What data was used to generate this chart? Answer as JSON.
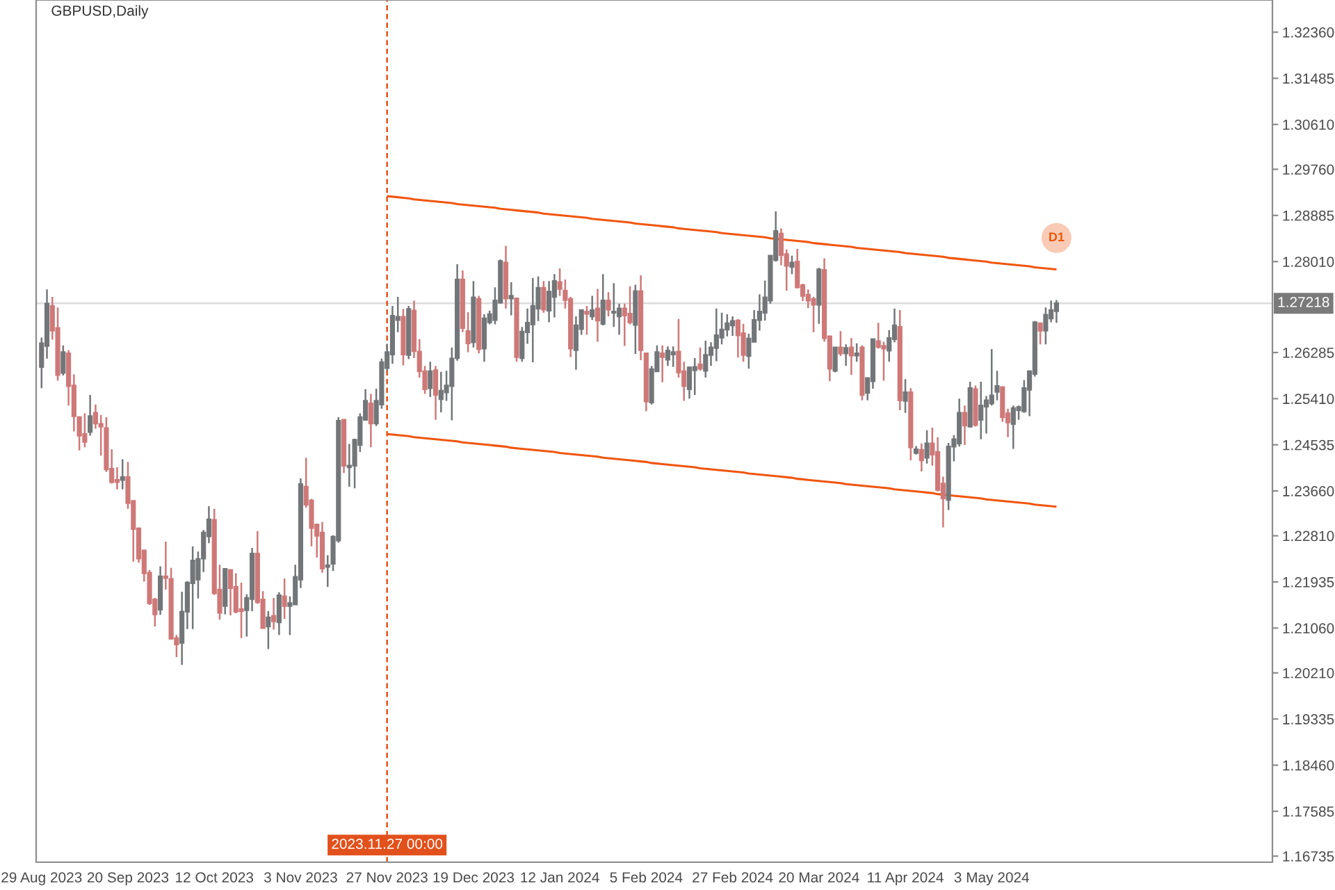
{
  "chart_data": {
    "type": "candlestick",
    "title": "GBPUSD,Daily",
    "categories": [
      "29 Aug 2023",
      null,
      null,
      null,
      null,
      null,
      null,
      null,
      null,
      null,
      null,
      null,
      null,
      null,
      null,
      null,
      "20 Sep 2023",
      null,
      null,
      null,
      null,
      null,
      null,
      null,
      null,
      null,
      null,
      null,
      null,
      null,
      null,
      null,
      "12 Oct 2023",
      null,
      null,
      null,
      null,
      null,
      null,
      null,
      null,
      null,
      null,
      null,
      null,
      null,
      null,
      null,
      "3 Nov 2023",
      null,
      null,
      null,
      null,
      null,
      null,
      null,
      null,
      null,
      null,
      null,
      null,
      null,
      null,
      null,
      "27 Nov 2023",
      null,
      null,
      null,
      null,
      null,
      null,
      null,
      null,
      null,
      null,
      null,
      null,
      null,
      null,
      null,
      "19 Dec 2023",
      null,
      null,
      null,
      null,
      null,
      null,
      null,
      null,
      null,
      null,
      null,
      null,
      null,
      null,
      null,
      "12 Jan 2024",
      null,
      null,
      null,
      null,
      null,
      null,
      null,
      null,
      null,
      null,
      null,
      null,
      null,
      null,
      null,
      "5 Feb 2024",
      null,
      null,
      null,
      null,
      null,
      null,
      null,
      null,
      null,
      null,
      null,
      null,
      null,
      null,
      null,
      "27 Feb 2024",
      null,
      null,
      null,
      null,
      null,
      null,
      null,
      null,
      null,
      null,
      null,
      null,
      null,
      null,
      null,
      "20 Mar 2024",
      null,
      null,
      null,
      null,
      null,
      null,
      null,
      null,
      null,
      null,
      null,
      null,
      null,
      null,
      null,
      "11 Apr 2024",
      null,
      null,
      null,
      null,
      null,
      null,
      null,
      null,
      null,
      null,
      null,
      null,
      null,
      null,
      null,
      "3 May 2024",
      null,
      null,
      null,
      null,
      null,
      null,
      null,
      null,
      null,
      null,
      null,
      null
    ],
    "ohlc": [
      [
        1.2601,
        1.2657,
        1.2561,
        1.2646
      ],
      [
        1.2641,
        1.2748,
        1.2617,
        1.2721
      ],
      [
        1.2717,
        1.2734,
        1.2653,
        1.267
      ],
      [
        1.2675,
        1.2714,
        1.2575,
        1.2586
      ],
      [
        1.259,
        1.2642,
        1.2585,
        1.2629
      ],
      [
        1.2627,
        1.2633,
        1.2528,
        1.2565
      ],
      [
        1.2566,
        1.2587,
        1.2479,
        1.2508
      ],
      [
        1.2506,
        1.2508,
        1.2443,
        1.2471
      ],
      [
        1.2474,
        1.2513,
        1.2449,
        1.2459
      ],
      [
        1.2478,
        1.2548,
        1.2471,
        1.2508
      ],
      [
        1.2514,
        1.253,
        1.2484,
        1.2494
      ],
      [
        1.2493,
        1.251,
        1.2433,
        1.2488
      ],
      [
        1.2485,
        1.2506,
        1.2402,
        1.2407
      ],
      [
        1.2408,
        1.2445,
        1.238,
        1.2383
      ],
      [
        1.2387,
        1.2411,
        1.2369,
        1.2383
      ],
      [
        1.2387,
        1.2426,
        1.2369,
        1.2392
      ],
      [
        1.2392,
        1.2421,
        1.2332,
        1.2343
      ],
      [
        1.2347,
        1.2348,
        1.2232,
        1.2294
      ],
      [
        1.2295,
        1.2297,
        1.223,
        1.2238
      ],
      [
        1.2253,
        1.2255,
        1.2194,
        1.221
      ],
      [
        1.2211,
        1.2216,
        1.215,
        1.2153
      ],
      [
        1.216,
        1.2163,
        1.2109,
        1.2132
      ],
      [
        1.2141,
        1.2223,
        1.2131,
        1.2204
      ],
      [
        1.2204,
        1.227,
        1.2179,
        1.2201
      ],
      [
        1.2199,
        1.222,
        1.2084,
        1.2086
      ],
      [
        1.2087,
        1.2093,
        1.2051,
        1.2075
      ],
      [
        1.2078,
        1.2175,
        1.2036,
        1.2137
      ],
      [
        1.2137,
        1.2195,
        1.2104,
        1.2192
      ],
      [
        1.2191,
        1.2261,
        1.2104,
        1.2234
      ],
      [
        1.2198,
        1.2251,
        1.2162,
        1.2237
      ],
      [
        1.2238,
        1.2292,
        1.2212,
        1.2287
      ],
      [
        1.228,
        1.2337,
        1.2267,
        1.2312
      ],
      [
        1.2311,
        1.2332,
        1.2169,
        1.2172
      ],
      [
        1.2179,
        1.2226,
        1.2122,
        1.2135
      ],
      [
        1.2148,
        1.2218,
        1.2132,
        1.2218
      ],
      [
        1.2216,
        1.2216,
        1.213,
        1.2182
      ],
      [
        1.2184,
        1.221,
        1.2134,
        1.2137
      ],
      [
        1.2142,
        1.2192,
        1.2087,
        1.2138
      ],
      [
        1.214,
        1.217,
        1.209,
        1.2163
      ],
      [
        1.2161,
        1.2258,
        1.2138,
        1.2247
      ],
      [
        1.2247,
        1.229,
        1.2152,
        1.2155
      ],
      [
        1.216,
        1.2176,
        1.2105,
        1.2106
      ],
      [
        1.2109,
        1.2138,
        1.2066,
        1.2126
      ],
      [
        1.2129,
        1.2163,
        1.2103,
        1.2119
      ],
      [
        1.2117,
        1.2174,
        1.2093,
        1.2168
      ],
      [
        1.2166,
        1.22,
        1.2123,
        1.2148
      ],
      [
        1.2148,
        1.2166,
        1.2093,
        1.2153
      ],
      [
        1.2151,
        1.2226,
        1.2151,
        1.2203
      ],
      [
        1.2198,
        1.239,
        1.2182,
        1.2379
      ],
      [
        1.2374,
        1.2429,
        1.2334,
        1.234
      ],
      [
        1.2348,
        1.2351,
        1.2261,
        1.2296
      ],
      [
        1.2302,
        1.2304,
        1.224,
        1.2281
      ],
      [
        1.2287,
        1.2307,
        1.2211,
        1.2219
      ],
      [
        1.2222,
        1.2244,
        1.2184,
        1.2225
      ],
      [
        1.2228,
        1.2282,
        1.2214,
        1.2279
      ],
      [
        1.2272,
        1.2506,
        1.2268,
        1.2499
      ],
      [
        1.2501,
        1.2501,
        1.24,
        1.2414
      ],
      [
        1.2411,
        1.2455,
        1.2374,
        1.2414
      ],
      [
        1.2414,
        1.2465,
        1.2371,
        1.2463
      ],
      [
        1.2453,
        1.2513,
        1.244,
        1.2506
      ],
      [
        1.2501,
        1.2559,
        1.25,
        1.2537
      ],
      [
        1.2532,
        1.255,
        1.2449,
        1.2494
      ],
      [
        1.2494,
        1.256,
        1.2489,
        1.2537
      ],
      [
        1.253,
        1.2617,
        1.2522,
        1.261
      ],
      [
        1.2599,
        1.2645,
        1.2594,
        1.2629
      ],
      [
        1.2625,
        1.2717,
        1.2607,
        1.2698
      ],
      [
        1.269,
        1.2734,
        1.2667,
        1.2696
      ],
      [
        1.2696,
        1.2711,
        1.2604,
        1.2625
      ],
      [
        1.2624,
        1.2717,
        1.2616,
        1.2711
      ],
      [
        1.2708,
        1.2727,
        1.2618,
        1.2631
      ],
      [
        1.263,
        1.2654,
        1.2581,
        1.2593
      ],
      [
        1.2593,
        1.2603,
        1.255,
        1.2559
      ],
      [
        1.2561,
        1.2611,
        1.2544,
        1.2593
      ],
      [
        1.2595,
        1.2603,
        1.2501,
        1.2548
      ],
      [
        1.254,
        1.2592,
        1.2515,
        1.2556
      ],
      [
        1.2553,
        1.2594,
        1.2537,
        1.2566
      ],
      [
        1.2565,
        1.2638,
        1.25,
        1.2617
      ],
      [
        1.2618,
        1.2796,
        1.2613,
        1.2767
      ],
      [
        1.2767,
        1.2784,
        1.2667,
        1.2675
      ],
      [
        1.2669,
        1.2705,
        1.2629,
        1.2646
      ],
      [
        1.2648,
        1.2764,
        1.2638,
        1.2733
      ],
      [
        1.273,
        1.2736,
        1.2627,
        1.2635
      ],
      [
        1.2636,
        1.2701,
        1.2611,
        1.2693
      ],
      [
        1.2686,
        1.2708,
        1.2682,
        1.2701
      ],
      [
        1.269,
        1.2752,
        1.2682,
        1.2727
      ],
      [
        1.2723,
        1.2805,
        1.2721,
        1.2802
      ],
      [
        1.2799,
        1.2831,
        1.2712,
        1.2731
      ],
      [
        1.2731,
        1.2762,
        1.2699,
        1.2736
      ],
      [
        1.2731,
        1.2731,
        1.2611,
        1.262
      ],
      [
        1.2618,
        1.2677,
        1.2611,
        1.2668
      ],
      [
        1.2667,
        1.2712,
        1.2645,
        1.2685
      ],
      [
        1.2682,
        1.277,
        1.261,
        1.2717
      ],
      [
        1.2712,
        1.2773,
        1.2688,
        1.2751
      ],
      [
        1.2751,
        1.2764,
        1.2704,
        1.271
      ],
      [
        1.2708,
        1.2764,
        1.2686,
        1.2744
      ],
      [
        1.2734,
        1.2777,
        1.2695,
        1.2764
      ],
      [
        1.2762,
        1.2788,
        1.2736,
        1.2749
      ],
      [
        1.2746,
        1.2767,
        1.2712,
        1.2728
      ],
      [
        1.273,
        1.2734,
        1.262,
        1.2636
      ],
      [
        1.2633,
        1.2697,
        1.2596,
        1.268
      ],
      [
        1.2673,
        1.2709,
        1.2662,
        1.2709
      ],
      [
        1.2706,
        1.2717,
        1.2662,
        1.2702
      ],
      [
        1.2697,
        1.2736,
        1.269,
        1.2709
      ],
      [
        1.2712,
        1.2749,
        1.2649,
        1.2689
      ],
      [
        1.2683,
        1.2777,
        1.268,
        1.2727
      ],
      [
        1.2727,
        1.2743,
        1.2697,
        1.271
      ],
      [
        1.2704,
        1.276,
        1.2677,
        1.2706
      ],
      [
        1.2697,
        1.2721,
        1.2662,
        1.2712
      ],
      [
        1.2712,
        1.2721,
        1.2641,
        1.2699
      ],
      [
        1.2702,
        1.2754,
        1.2682,
        1.2686
      ],
      [
        1.2681,
        1.2757,
        1.2626,
        1.2745
      ],
      [
        1.2745,
        1.2775,
        1.2614,
        1.2633
      ],
      [
        1.2627,
        1.2627,
        1.2517,
        1.2536
      ],
      [
        1.2534,
        1.2603,
        1.253,
        1.2597
      ],
      [
        1.2593,
        1.2642,
        1.2593,
        1.2629
      ],
      [
        1.2627,
        1.2642,
        1.2572,
        1.262
      ],
      [
        1.2615,
        1.264,
        1.2603,
        1.2632
      ],
      [
        1.2625,
        1.264,
        1.2601,
        1.2629
      ],
      [
        1.263,
        1.2692,
        1.2581,
        1.2591
      ],
      [
        1.2593,
        1.2611,
        1.2537,
        1.2565
      ],
      [
        1.2559,
        1.2602,
        1.2541,
        1.26
      ],
      [
        1.2595,
        1.2618,
        1.2548,
        1.2601
      ],
      [
        1.2606,
        1.2638,
        1.2594,
        1.2598
      ],
      [
        1.2594,
        1.2651,
        1.2581,
        1.2624
      ],
      [
        1.2624,
        1.2648,
        1.2603,
        1.2638
      ],
      [
        1.2637,
        1.2712,
        1.2612,
        1.2661
      ],
      [
        1.2657,
        1.2704,
        1.2644,
        1.2672
      ],
      [
        1.2672,
        1.2701,
        1.2659,
        1.2684
      ],
      [
        1.268,
        1.2697,
        1.266,
        1.2688
      ],
      [
        1.2689,
        1.2692,
        1.2619,
        1.2661
      ],
      [
        1.2665,
        1.2683,
        1.2611,
        1.2624
      ],
      [
        1.2622,
        1.2664,
        1.2598,
        1.2655
      ],
      [
        1.2649,
        1.2709,
        1.2649,
        1.269
      ],
      [
        1.269,
        1.2739,
        1.267,
        1.2706
      ],
      [
        1.2704,
        1.2765,
        1.2689,
        1.2733
      ],
      [
        1.2727,
        1.2812,
        1.2721,
        1.2812
      ],
      [
        1.2804,
        1.2896,
        1.2801,
        1.2859
      ],
      [
        1.2854,
        1.2864,
        1.2794,
        1.2813
      ],
      [
        1.2815,
        1.2824,
        1.2746,
        1.2793
      ],
      [
        1.2791,
        1.2812,
        1.2777,
        1.2799
      ],
      [
        1.2801,
        1.2825,
        1.275,
        1.2752
      ],
      [
        1.2756,
        1.2759,
        1.2726,
        1.2736
      ],
      [
        1.2738,
        1.2748,
        1.2713,
        1.2727
      ],
      [
        1.273,
        1.2734,
        1.2667,
        1.2719
      ],
      [
        1.2719,
        1.2789,
        1.2683,
        1.2786
      ],
      [
        1.2785,
        1.2807,
        1.2649,
        1.2656
      ],
      [
        1.2659,
        1.2659,
        1.2574,
        1.2598
      ],
      [
        1.2594,
        1.2638,
        1.2591,
        1.2638
      ],
      [
        1.2638,
        1.2669,
        1.2622,
        1.2627
      ],
      [
        1.2627,
        1.2644,
        1.2603,
        1.2637
      ],
      [
        1.2638,
        1.2656,
        1.2586,
        1.2623
      ],
      [
        1.2623,
        1.2646,
        1.2611,
        1.2627
      ],
      [
        1.2638,
        1.2642,
        1.2538,
        1.2548
      ],
      [
        1.2552,
        1.258,
        1.2538,
        1.258
      ],
      [
        1.2574,
        1.2654,
        1.256,
        1.2654
      ],
      [
        1.265,
        1.2685,
        1.2636,
        1.2639
      ],
      [
        1.2641,
        1.2649,
        1.2575,
        1.2636
      ],
      [
        1.2632,
        1.2671,
        1.2611,
        1.2656
      ],
      [
        1.2654,
        1.2712,
        1.2648,
        1.268
      ],
      [
        1.2677,
        1.2709,
        1.2519,
        1.2538
      ],
      [
        1.2537,
        1.2578,
        1.2514,
        1.2553
      ],
      [
        1.2553,
        1.2561,
        1.2424,
        1.2449
      ],
      [
        1.2438,
        1.2451,
        1.2435,
        1.2445
      ],
      [
        1.2444,
        1.2456,
        1.2403,
        1.2424
      ],
      [
        1.2429,
        1.2481,
        1.2418,
        1.2456
      ],
      [
        1.2456,
        1.2486,
        1.2414,
        1.2435
      ],
      [
        1.244,
        1.2468,
        1.2365,
        1.2368
      ],
      [
        1.238,
        1.2393,
        1.2297,
        1.2352
      ],
      [
        1.2349,
        1.2457,
        1.233,
        1.245
      ],
      [
        1.245,
        1.2472,
        1.2422,
        1.2464
      ],
      [
        1.2456,
        1.2541,
        1.245,
        1.2514
      ],
      [
        1.2514,
        1.2528,
        1.2453,
        1.249
      ],
      [
        1.2488,
        1.2573,
        1.2486,
        1.2561
      ],
      [
        1.2559,
        1.2566,
        1.2488,
        1.2491
      ],
      [
        1.2501,
        1.2573,
        1.2464,
        1.2528
      ],
      [
        1.2526,
        1.2546,
        1.2475,
        1.2538
      ],
      [
        1.2532,
        1.2635,
        1.2528,
        1.2547
      ],
      [
        1.2554,
        1.2594,
        1.2538,
        1.2565
      ],
      [
        1.2563,
        1.2563,
        1.2497,
        1.2506
      ],
      [
        1.2513,
        1.2522,
        1.2468,
        1.2496
      ],
      [
        1.2493,
        1.2528,
        1.2446,
        1.2523
      ],
      [
        1.2519,
        1.2528,
        1.2501,
        1.2525
      ],
      [
        1.2517,
        1.2576,
        1.2514,
        1.2561
      ],
      [
        1.2558,
        1.2595,
        1.2508,
        1.2593
      ],
      [
        1.2588,
        1.2688,
        1.2583,
        1.2686
      ],
      [
        1.2684,
        1.2684,
        1.2644,
        1.267
      ],
      [
        1.267,
        1.2714,
        1.2644,
        1.27
      ],
      [
        1.2693,
        1.2727,
        1.2686,
        1.2709
      ],
      [
        1.2707,
        1.2728,
        1.2685,
        1.2722
      ]
    ],
    "colors": [
      "#737678",
      "#737678",
      "#cf7878",
      "#cf7878",
      "#737678",
      "#cf7878",
      "#cf7878",
      "#cf7878",
      "#cf7878",
      "#737678",
      "#cf7878",
      "#cf7878",
      "#cf7878",
      "#cf7878",
      "#cf7878",
      "#737678",
      "#cf7878",
      "#cf7878",
      "#cf7878",
      "#cf7878",
      "#cf7878",
      "#cf7878",
      "#737678",
      "#cf7878",
      "#cf7878",
      "#cf7878",
      "#737678",
      "#737678",
      "#737678",
      "#737678",
      "#737678",
      "#737678",
      "#cf7878",
      "#cf7878",
      "#737678",
      "#cf7878",
      "#cf7878",
      "#cf7878",
      "#737678",
      "#737678",
      "#cf7878",
      "#cf7878",
      "#737678",
      "#cf7878",
      "#737678",
      "#cf7878",
      "#737678",
      "#737678",
      "#737678",
      "#cf7878",
      "#cf7878",
      "#cf7878",
      "#cf7878",
      "#737678",
      "#737678",
      "#737678",
      "#cf7878",
      "#737678",
      "#737678",
      "#737678",
      "#737678",
      "#cf7878",
      "#737678",
      "#737678",
      "#737678",
      "#737678",
      "#737678",
      "#cf7878",
      "#737678",
      "#cf7878",
      "#cf7878",
      "#cf7878",
      "#737678",
      "#cf7878",
      "#737678",
      "#737678",
      "#737678",
      "#737678",
      "#cf7878",
      "#cf7878",
      "#737678",
      "#cf7878",
      "#737678",
      "#737678",
      "#737678",
      "#737678",
      "#cf7878",
      "#737678",
      "#cf7878",
      "#737678",
      "#737678",
      "#737678",
      "#737678",
      "#cf7878",
      "#737678",
      "#737678",
      "#cf7878",
      "#cf7878",
      "#cf7878",
      "#737678",
      "#737678",
      "#cf7878",
      "#737678",
      "#cf7878",
      "#737678",
      "#cf7878",
      "#737678",
      "#737678",
      "#cf7878",
      "#cf7878",
      "#737678",
      "#cf7878",
      "#cf7878",
      "#737678",
      "#737678",
      "#cf7878",
      "#737678",
      "#737678",
      "#cf7878",
      "#cf7878",
      "#737678",
      "#737678",
      "#cf7878",
      "#737678",
      "#737678",
      "#737678",
      "#737678",
      "#737678",
      "#737678",
      "#cf7878",
      "#cf7878",
      "#737678",
      "#737678",
      "#737678",
      "#737678",
      "#737678",
      "#737678",
      "#cf7878",
      "#cf7878",
      "#737678",
      "#cf7878",
      "#cf7878",
      "#cf7878",
      "#cf7878",
      "#737678",
      "#cf7878",
      "#cf7878",
      "#737678",
      "#cf7878",
      "#737678",
      "#cf7878",
      "#737678",
      "#cf7878",
      "#737678",
      "#737678",
      "#cf7878",
      "#cf7878",
      "#737678",
      "#737678",
      "#cf7878",
      "#737678",
      "#cf7878",
      "#737678",
      "#cf7878",
      "#737678",
      "#cf7878",
      "#cf7878",
      "#cf7878",
      "#737678",
      "#737678",
      "#737678",
      "#cf7878",
      "#737678",
      "#cf7878",
      "#737678",
      "#737678",
      "#737678",
      "#737678",
      "#cf7878",
      "#cf7878",
      "#737678",
      "#737678",
      "#737678",
      "#737678",
      "#737678",
      "#cf7878",
      "#737678",
      "#737678",
      "#737678"
    ],
    "series": [
      {
        "type": "line",
        "color": "#f0560f",
        "values": [
          null,
          null,
          null,
          null,
          null,
          null,
          null,
          null,
          null,
          null,
          null,
          null,
          null,
          null,
          null,
          null,
          null,
          null,
          null,
          null,
          null,
          null,
          null,
          null,
          null,
          null,
          null,
          null,
          null,
          null,
          null,
          null,
          null,
          null,
          null,
          null,
          null,
          null,
          null,
          null,
          null,
          null,
          null,
          null,
          null,
          null,
          null,
          null,
          null,
          null,
          null,
          null,
          null,
          null,
          null,
          null,
          null,
          null,
          null,
          null,
          null,
          null,
          null,
          null,
          1.2925,
          1.2924,
          1.2923,
          1.2922,
          1.2921,
          1.2919,
          1.2918,
          1.2917,
          1.2916,
          1.2915,
          1.2914,
          1.2913,
          1.2912,
          1.291,
          1.2909,
          1.2908,
          1.2907,
          1.2906,
          1.2905,
          1.2904,
          1.2903,
          1.2901,
          1.29,
          1.2899,
          1.2898,
          1.2897,
          1.2896,
          1.2895,
          1.2894,
          1.2892,
          1.2891,
          1.289,
          1.2889,
          1.2888,
          1.2887,
          1.2886,
          1.2885,
          1.2884,
          1.2882,
          1.2881,
          1.288,
          1.2879,
          1.2878,
          1.2877,
          1.2876,
          1.2875,
          1.2873,
          1.2872,
          1.2871,
          1.287,
          1.2869,
          1.2868,
          1.2867,
          1.2866,
          1.2864,
          1.2863,
          1.2862,
          1.2861,
          1.286,
          1.2859,
          1.2858,
          1.2857,
          1.2855,
          1.2854,
          1.2853,
          1.2852,
          1.2851,
          1.285,
          1.2849,
          1.2848,
          1.2847,
          1.2845,
          1.2844,
          1.2843,
          1.2842,
          1.2841,
          1.284,
          1.2839,
          1.2838,
          1.2836,
          1.2835,
          1.2834,
          1.2833,
          1.2832,
          1.2831,
          1.283,
          1.2829,
          1.2827,
          1.2826,
          1.2825,
          1.2824,
          1.2823,
          1.2822,
          1.2821,
          1.282,
          1.2819,
          1.2817,
          1.2816,
          1.2815,
          1.2814,
          1.2813,
          1.2812,
          1.2811,
          1.281,
          1.2808,
          1.2807,
          1.2806,
          1.2805,
          1.2804,
          1.2803,
          1.2802,
          1.2801,
          1.2799,
          1.2798,
          1.2797,
          1.2796,
          1.2795,
          1.2794,
          1.2793,
          1.2792,
          1.279,
          1.2789,
          1.2788,
          1.2787,
          1.2786
        ]
      },
      {
        "type": "line",
        "color": "#f0560f",
        "values": [
          null,
          null,
          null,
          null,
          null,
          null,
          null,
          null,
          null,
          null,
          null,
          null,
          null,
          null,
          null,
          null,
          null,
          null,
          null,
          null,
          null,
          null,
          null,
          null,
          null,
          null,
          null,
          null,
          null,
          null,
          null,
          null,
          null,
          null,
          null,
          null,
          null,
          null,
          null,
          null,
          null,
          null,
          null,
          null,
          null,
          null,
          null,
          null,
          null,
          null,
          null,
          null,
          null,
          null,
          null,
          null,
          null,
          null,
          null,
          null,
          null,
          null,
          null,
          null,
          1.2474,
          1.2473,
          1.2472,
          1.2471,
          1.247,
          1.2468,
          1.2467,
          1.2466,
          1.2465,
          1.2464,
          1.2463,
          1.2462,
          1.2461,
          1.246,
          1.2458,
          1.2457,
          1.2456,
          1.2455,
          1.2454,
          1.2453,
          1.2452,
          1.2451,
          1.245,
          1.2448,
          1.2447,
          1.2446,
          1.2445,
          1.2444,
          1.2443,
          1.2442,
          1.2441,
          1.244,
          1.2438,
          1.2437,
          1.2436,
          1.2435,
          1.2434,
          1.2433,
          1.2432,
          1.2431,
          1.2429,
          1.2428,
          1.2427,
          1.2426,
          1.2425,
          1.2424,
          1.2423,
          1.2422,
          1.2421,
          1.2419,
          1.2418,
          1.2417,
          1.2416,
          1.2415,
          1.2414,
          1.2413,
          1.2412,
          1.2411,
          1.2409,
          1.2408,
          1.2407,
          1.2406,
          1.2405,
          1.2404,
          1.2403,
          1.2402,
          1.2401,
          1.2399,
          1.2398,
          1.2397,
          1.2396,
          1.2395,
          1.2394,
          1.2393,
          1.2392,
          1.2391,
          1.2389,
          1.2388,
          1.2387,
          1.2386,
          1.2385,
          1.2384,
          1.2383,
          1.2382,
          1.2381,
          1.2379,
          1.2378,
          1.2377,
          1.2376,
          1.2375,
          1.2374,
          1.2373,
          1.2372,
          1.2371,
          1.2369,
          1.2368,
          1.2367,
          1.2366,
          1.2365,
          1.2364,
          1.2363,
          1.2362,
          1.236,
          1.2359,
          1.2358,
          1.2357,
          1.2356,
          1.2355,
          1.2354,
          1.2353,
          1.2352,
          1.235,
          1.2349,
          1.2348,
          1.2347,
          1.2346,
          1.2345,
          1.2344,
          1.2343,
          1.2342,
          1.234,
          1.2339,
          1.2338,
          1.2337,
          1.2336
        ]
      }
    ],
    "ylim": [
      1.1662,
      1.3297
    ],
    "yticks": [
      {
        "value": 1.3236,
        "label": "1.32360"
      },
      1.31485,
      {
        "value": 1.3061,
        "label": "1.30610"
      },
      {
        "value": 1.2976,
        "label": "1.29760"
      },
      1.28885,
      {
        "value": 1.2801,
        "label": "1.28010"
      },
      1.26285,
      {
        "value": 1.2541,
        "label": "1.25410"
      },
      1.24535,
      {
        "value": 1.2366,
        "label": "1.23660"
      },
      {
        "value": 1.2281,
        "label": "1.22810"
      },
      1.21935,
      {
        "value": 1.2106,
        "label": "1.21060"
      },
      {
        "value": 1.2021,
        "label": "1.20210"
      },
      1.19335,
      {
        "value": 1.1846,
        "label": "1.18460"
      },
      1.17585,
      1.16735
    ],
    "ref_lines": [
      {
        "axis": "x",
        "value": "27 Nov 2023",
        "label": "2023.11.27 00:00",
        "color": "#e2501c",
        "line_style": "dashed"
      },
      {
        "axis": "y",
        "value": 1.27218,
        "label": "1.27218",
        "color": "#dcdcdc",
        "line_style": "solid"
      }
    ],
    "annotations": [
      "D1"
    ],
    "grid": false
  }
}
